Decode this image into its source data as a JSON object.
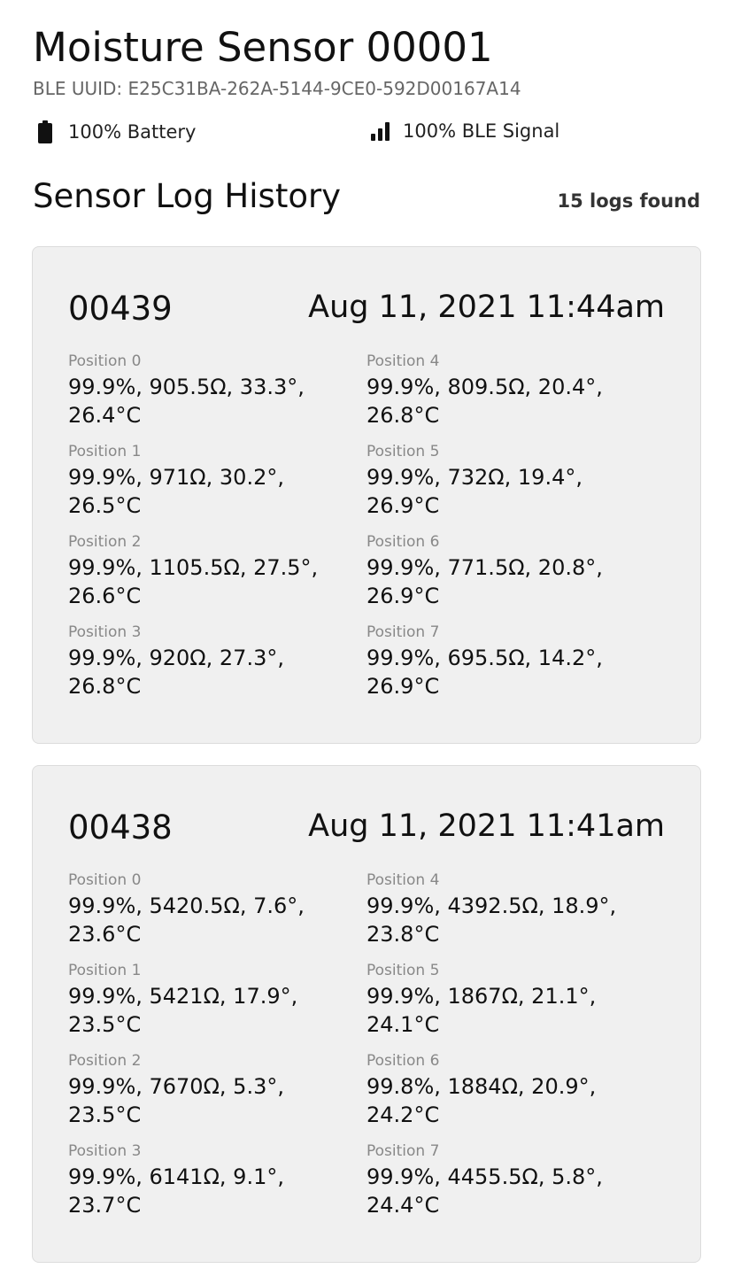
{
  "device": {
    "title": "Moisture Sensor 00001",
    "uuid": "BLE UUID: E25C31BA-262A-5144-9CE0-592D00167A14"
  },
  "status": {
    "battery": {
      "icon": "battery-full-icon",
      "label": "100% Battery"
    },
    "signal": {
      "icon": "signal-bars-icon",
      "label": "100% BLE Signal"
    }
  },
  "history": {
    "title": "Sensor Log History",
    "count_label": "15 logs found"
  },
  "logs": [
    {
      "id": "00439",
      "timestamp": "Aug 11, 2021 11:44am",
      "positions": [
        {
          "label": "Position 0",
          "value": "99.9%, 905.5Ω, 33.3°, 26.4°C"
        },
        {
          "label": "Position 1",
          "value": "99.9%, 971Ω, 30.2°, 26.5°C"
        },
        {
          "label": "Position 2",
          "value": "99.9%, 1105.5Ω, 27.5°, 26.6°C"
        },
        {
          "label": "Position 3",
          "value": "99.9%, 920Ω, 27.3°, 26.8°C"
        },
        {
          "label": "Position 4",
          "value": "99.9%, 809.5Ω, 20.4°, 26.8°C"
        },
        {
          "label": "Position 5",
          "value": "99.9%, 732Ω, 19.4°, 26.9°C"
        },
        {
          "label": "Position 6",
          "value": "99.9%, 771.5Ω, 20.8°, 26.9°C"
        },
        {
          "label": "Position 7",
          "value": "99.9%, 695.5Ω, 14.2°, 26.9°C"
        }
      ]
    },
    {
      "id": "00438",
      "timestamp": "Aug 11, 2021 11:41am",
      "positions": [
        {
          "label": "Position 0",
          "value": "99.9%, 5420.5Ω, 7.6°, 23.6°C"
        },
        {
          "label": "Position 1",
          "value": "99.9%, 5421Ω, 17.9°, 23.5°C"
        },
        {
          "label": "Position 2",
          "value": "99.9%, 7670Ω, 5.3°, 23.5°C"
        },
        {
          "label": "Position 3",
          "value": "99.9%, 6141Ω, 9.1°, 23.7°C"
        },
        {
          "label": "Position 4",
          "value": "99.9%, 4392.5Ω, 18.9°, 23.8°C"
        },
        {
          "label": "Position 5",
          "value": "99.9%, 1867Ω, 21.1°, 24.1°C"
        },
        {
          "label": "Position 6",
          "value": "99.8%, 1884Ω, 20.9°, 24.2°C"
        },
        {
          "label": "Position 7",
          "value": "99.9%, 4455.5Ω, 5.8°, 24.4°C"
        }
      ]
    }
  ]
}
